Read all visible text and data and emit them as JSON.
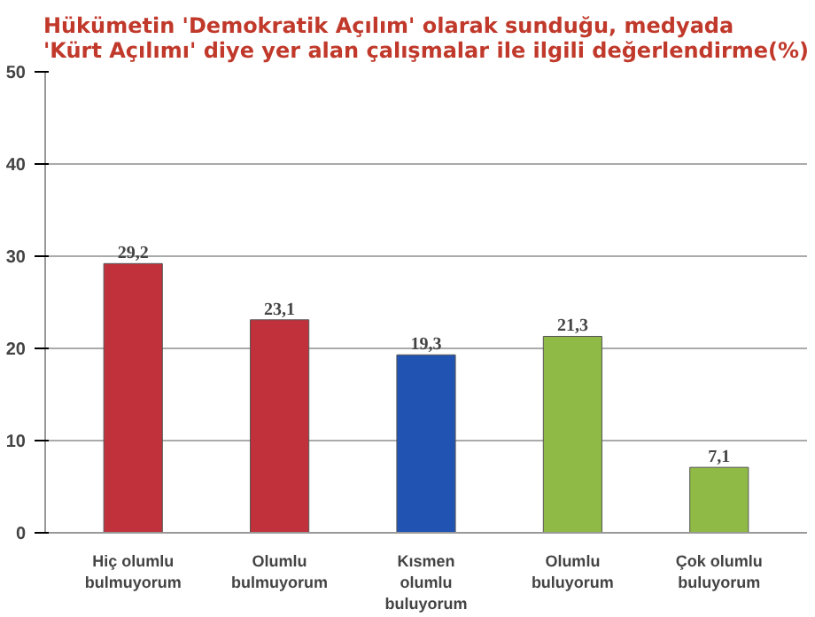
{
  "chart_data": {
    "type": "bar",
    "title": "Hükümetin 'Demokratik Açılım' olarak sunduğu, medyada\n'Kürt Açılımı' diye yer alan çalışmalar ile ilgili değerlendirme(%)",
    "categories": [
      "Hiç olumlu bulmuyorum",
      "Olumlu bulmuyorum",
      "Kısmen olumlu buluyorum",
      "Olumlu buluyorum",
      "Çok olumlu buluyorum"
    ],
    "values": [
      29.2,
      23.1,
      19.3,
      21.3,
      7.1
    ],
    "colors": [
      "#c0313b",
      "#c0313b",
      "#2153b3",
      "#8fba45",
      "#8fba45"
    ],
    "value_labels": [
      "29,2",
      "23,1",
      "19,3",
      "21,3",
      "7,1"
    ],
    "ylim": [
      0,
      50
    ],
    "yticks": [
      0,
      10,
      20,
      30,
      40,
      50
    ],
    "grid": "y"
  }
}
